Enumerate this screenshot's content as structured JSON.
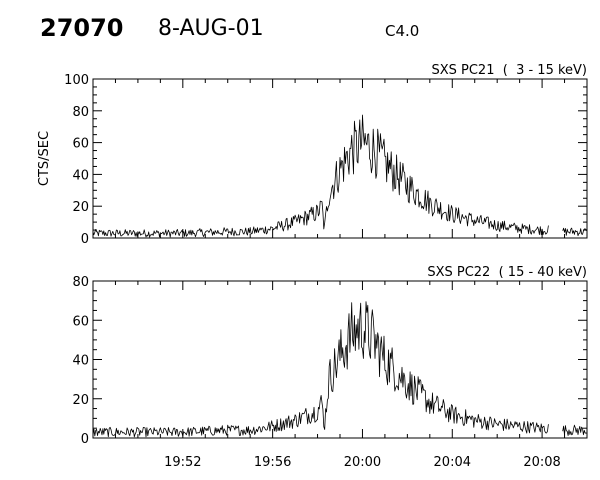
{
  "header": {
    "event_id": "27070",
    "date": "8-AUG-01",
    "goes_class": "C4.0"
  },
  "chart_data": [
    {
      "type": "line",
      "title": "SXS PC21  (  3 - 15 keV)",
      "ylabel": "CTS/SEC",
      "xlim": [
        "19:48",
        "20:10"
      ],
      "ylim": [
        0,
        100
      ],
      "yticks": [
        0,
        20,
        40,
        60,
        80,
        100
      ],
      "xticks": [
        "19:52",
        "19:56",
        "20:00",
        "20:04",
        "20:08"
      ],
      "x_tick_labels_shown": false,
      "data_gap": [
        "20:08.3",
        "20:08.9"
      ],
      "series": [
        {
          "x": [
            "19:48",
            "19:50",
            "19:52",
            "19:54",
            "19:55",
            "19:56",
            "19:57",
            "19:58",
            "19:58.2",
            "19:58.3",
            "19:58.5",
            "19:59",
            "19:59.5",
            "20:00",
            "20:00.5",
            "20:01",
            "20:02",
            "20:03",
            "20:04",
            "20:05",
            "20:06",
            "20:07",
            "20:08",
            "20:08.3",
            "20:09",
            "20:10"
          ],
          "values": [
            3,
            3,
            3,
            4,
            4,
            6,
            10,
            16,
            20,
            5,
            28,
            43,
            55,
            60,
            56,
            47,
            33,
            22,
            15,
            11,
            8,
            6,
            5,
            5,
            4,
            4
          ]
        }
      ]
    },
    {
      "type": "line",
      "title": "SXS PC22  ( 15 - 40 keV)",
      "ylabel": "",
      "xlim": [
        "19:48",
        "20:10"
      ],
      "ylim": [
        0,
        80
      ],
      "yticks": [
        0,
        20,
        40,
        60,
        80
      ],
      "xticks": [
        "19:52",
        "19:56",
        "20:00",
        "20:04",
        "20:08"
      ],
      "x_tick_labels_shown": true,
      "data_gap": [
        "20:08.3",
        "20:08.9"
      ],
      "series": [
        {
          "x": [
            "19:48",
            "19:50",
            "19:52",
            "19:54",
            "19:55",
            "19:56",
            "19:57",
            "19:58",
            "19:58.2",
            "19:58.3",
            "19:58.5",
            "19:59",
            "19:59.5",
            "20:00",
            "20:00.5",
            "20:01",
            "20:02",
            "20:03",
            "20:04",
            "20:05",
            "20:06",
            "20:07",
            "20:08",
            "20:08.3",
            "20:09",
            "20:10"
          ],
          "values": [
            3,
            3,
            3,
            4,
            4,
            6,
            9,
            14,
            18,
            5,
            30,
            42,
            53,
            57,
            50,
            40,
            28,
            18,
            12,
            9,
            7,
            6,
            5,
            5,
            4,
            4
          ]
        }
      ]
    }
  ]
}
